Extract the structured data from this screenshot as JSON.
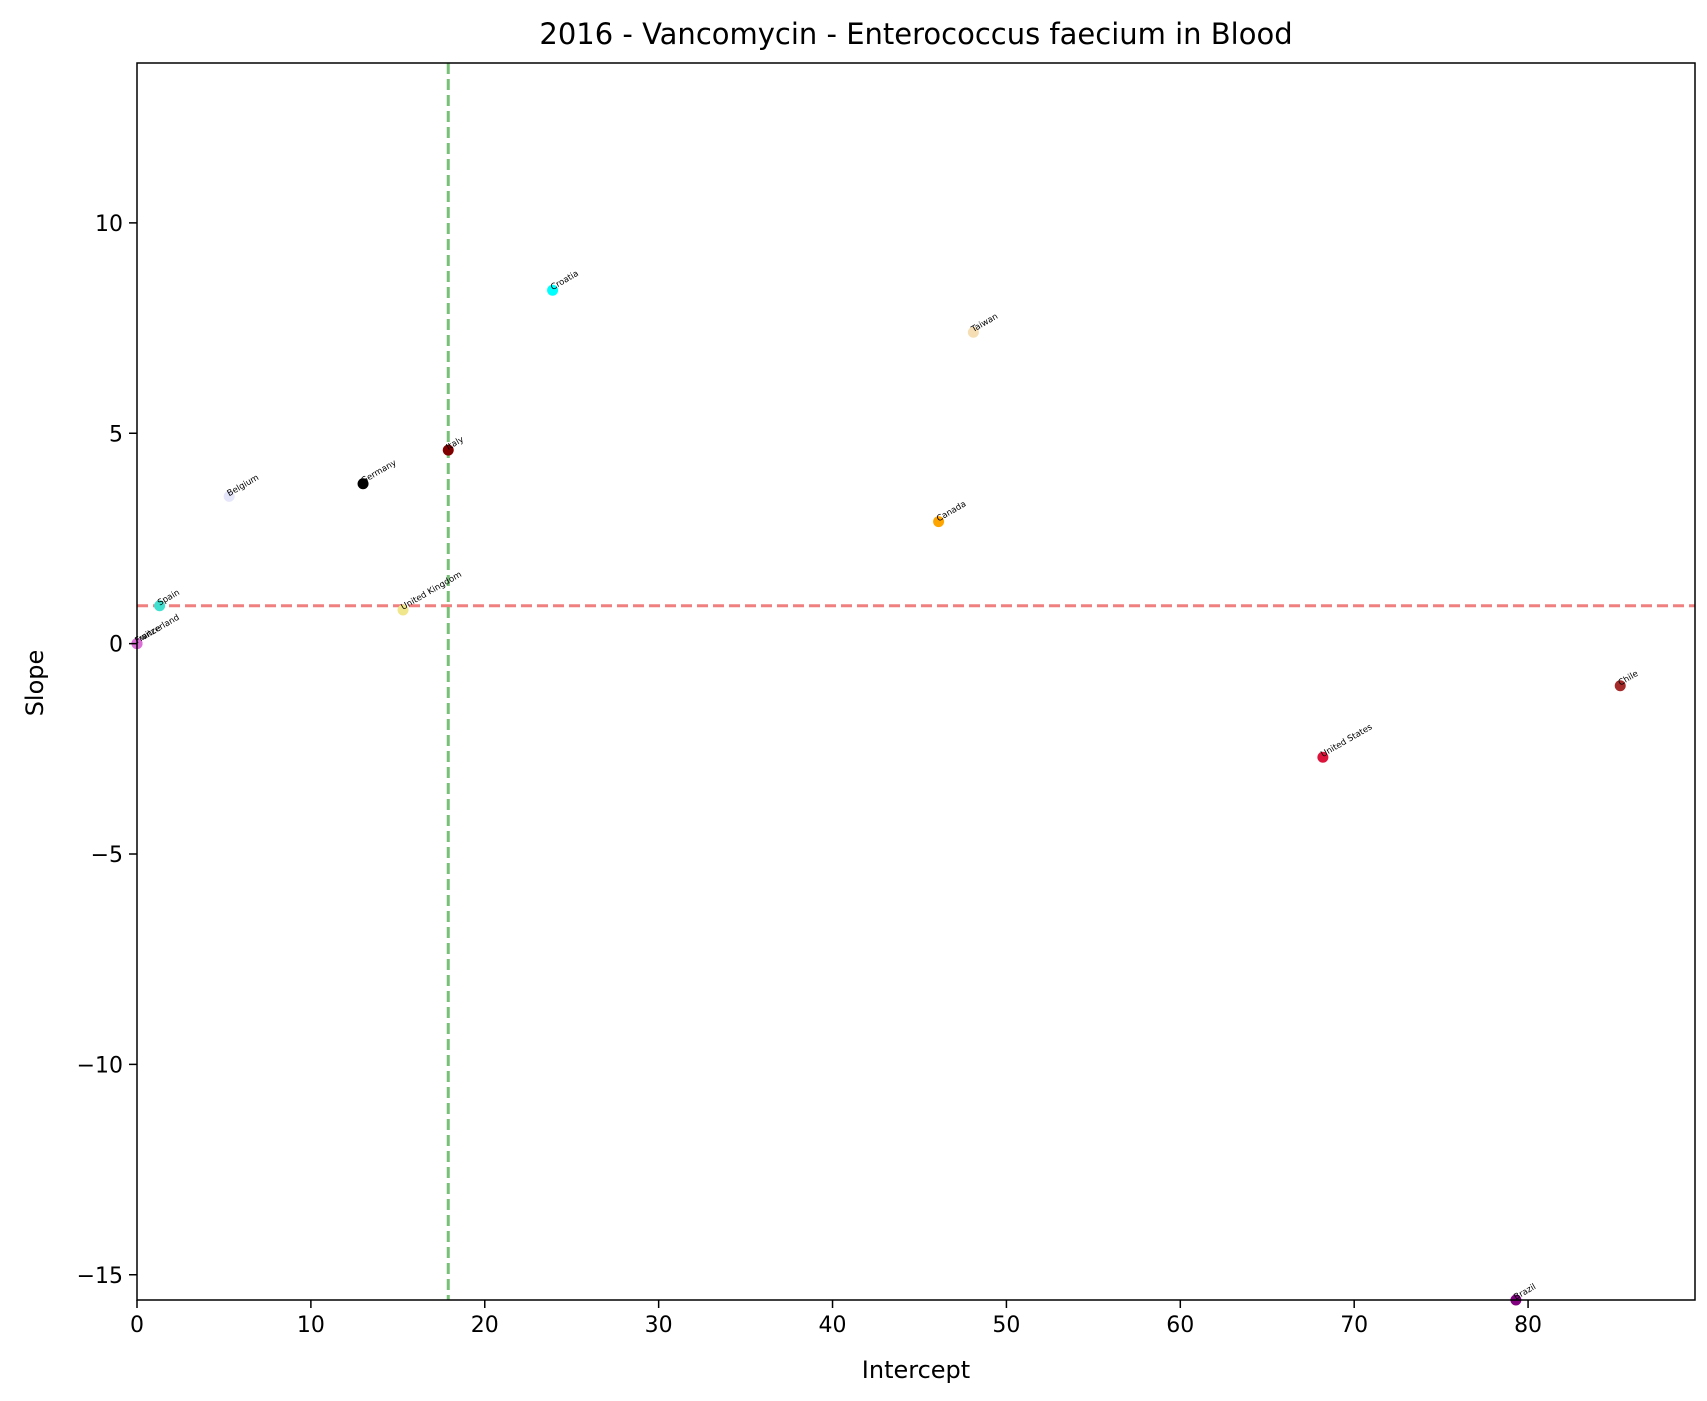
{
  "chart_data": {
    "type": "scatter",
    "title": "2016 - Vancomycin - Enterococcus faecium in Blood",
    "xlabel": "Intercept",
    "ylabel": "Slope",
    "xlim": [
      0,
      89.6
    ],
    "ylim": [
      -15.6,
      13.8
    ],
    "xticks": [
      0,
      10,
      20,
      30,
      40,
      50,
      60,
      70,
      80
    ],
    "yticks": [
      -15,
      -10,
      -5,
      0,
      5,
      10
    ],
    "grid": false,
    "legend": "none",
    "reference_lines": [
      {
        "orientation": "horizontal",
        "value": 0.9,
        "color": "#f08080",
        "style": "dashed"
      },
      {
        "orientation": "vertical",
        "value": 17.9,
        "color": "#77c077",
        "style": "dashed"
      }
    ],
    "points": [
      {
        "label": "Croatia",
        "x": 23.9,
        "y": 8.4,
        "color": "#00ffff"
      },
      {
        "label": "Taiwan",
        "x": 48.1,
        "y": 7.4,
        "color": "#f5deb3"
      },
      {
        "label": "Italy",
        "x": 17.9,
        "y": 4.6,
        "color": "#800000"
      },
      {
        "label": "Germany",
        "x": 13.0,
        "y": 3.8,
        "color": "#000000"
      },
      {
        "label": "Belgium",
        "x": 5.3,
        "y": 3.5,
        "color": "#e6e6fa"
      },
      {
        "label": "Canada",
        "x": 46.1,
        "y": 2.9,
        "color": "#ffa500"
      },
      {
        "label": "Spain",
        "x": 1.3,
        "y": 0.9,
        "color": "#40e0d0"
      },
      {
        "label": "United Kingdom",
        "x": 15.3,
        "y": 0.8,
        "color": "#f0e68c"
      },
      {
        "label": "Switzerland",
        "x": 0.0,
        "y": 0.0,
        "color": "#ff00ff"
      },
      {
        "label": "France",
        "x": 0.0,
        "y": 0.0,
        "color": "#da70d6"
      },
      {
        "label": "Chile",
        "x": 85.3,
        "y": -1.0,
        "color": "#a52a2a"
      },
      {
        "label": "United States",
        "x": 68.2,
        "y": -2.7,
        "color": "#dc143c"
      },
      {
        "label": "Brazil",
        "x": 79.3,
        "y": -15.6,
        "color": "#800080"
      }
    ]
  }
}
